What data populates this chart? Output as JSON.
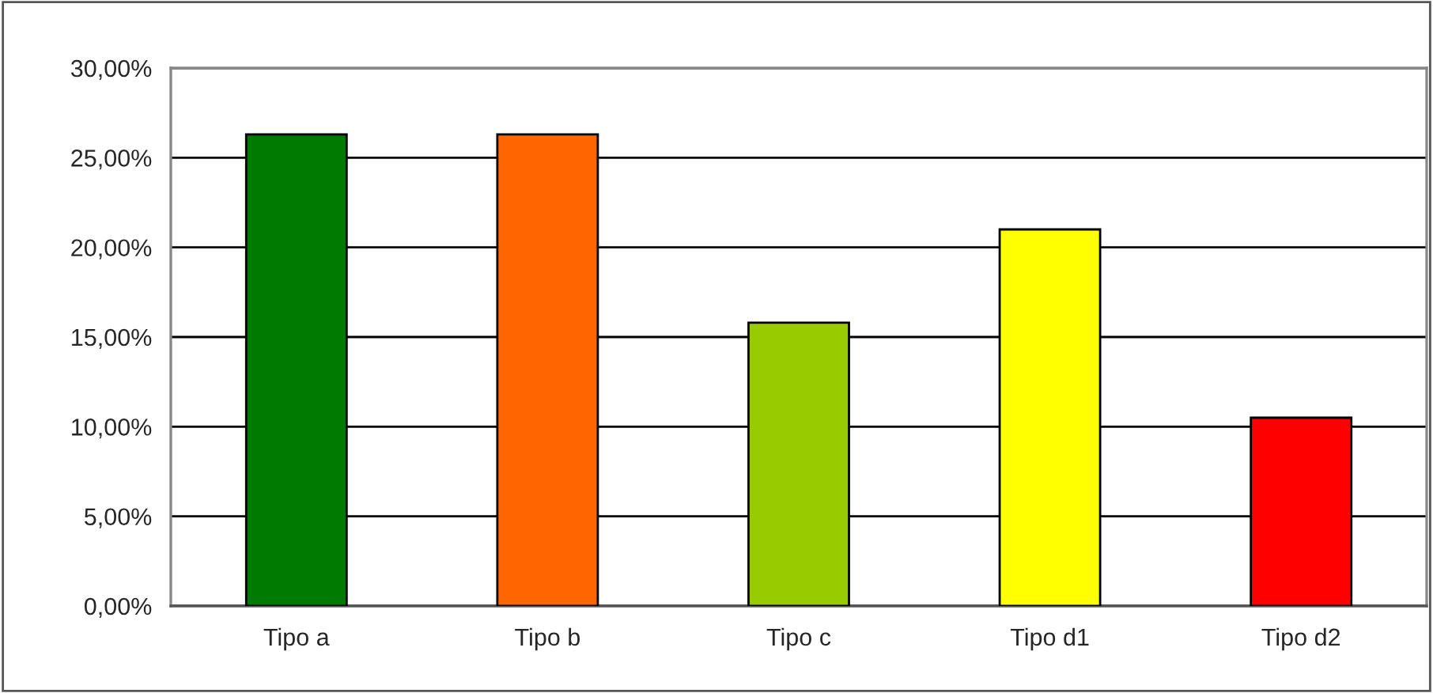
{
  "chart_data": {
    "type": "bar",
    "categories": [
      "Tipo a",
      "Tipo b",
      "Tipo c",
      "Tipo d1",
      "Tipo d2"
    ],
    "values": [
      26.3,
      26.3,
      15.8,
      21.0,
      10.5
    ],
    "colors": [
      "#007a00",
      "#ff6600",
      "#99cc00",
      "#ffff00",
      "#ff0000"
    ],
    "ylim": [
      0,
      30
    ],
    "yticks": [
      {
        "value": 0,
        "label": "0,00%"
      },
      {
        "value": 5,
        "label": "5,00%"
      },
      {
        "value": 10,
        "label": "10,00%"
      },
      {
        "value": 15,
        "label": "15,00%"
      },
      {
        "value": 20,
        "label": "20,00%"
      },
      {
        "value": 25,
        "label": "25,00%"
      },
      {
        "value": 30,
        "label": "30,00%"
      }
    ],
    "grid": "y",
    "legend": false
  }
}
